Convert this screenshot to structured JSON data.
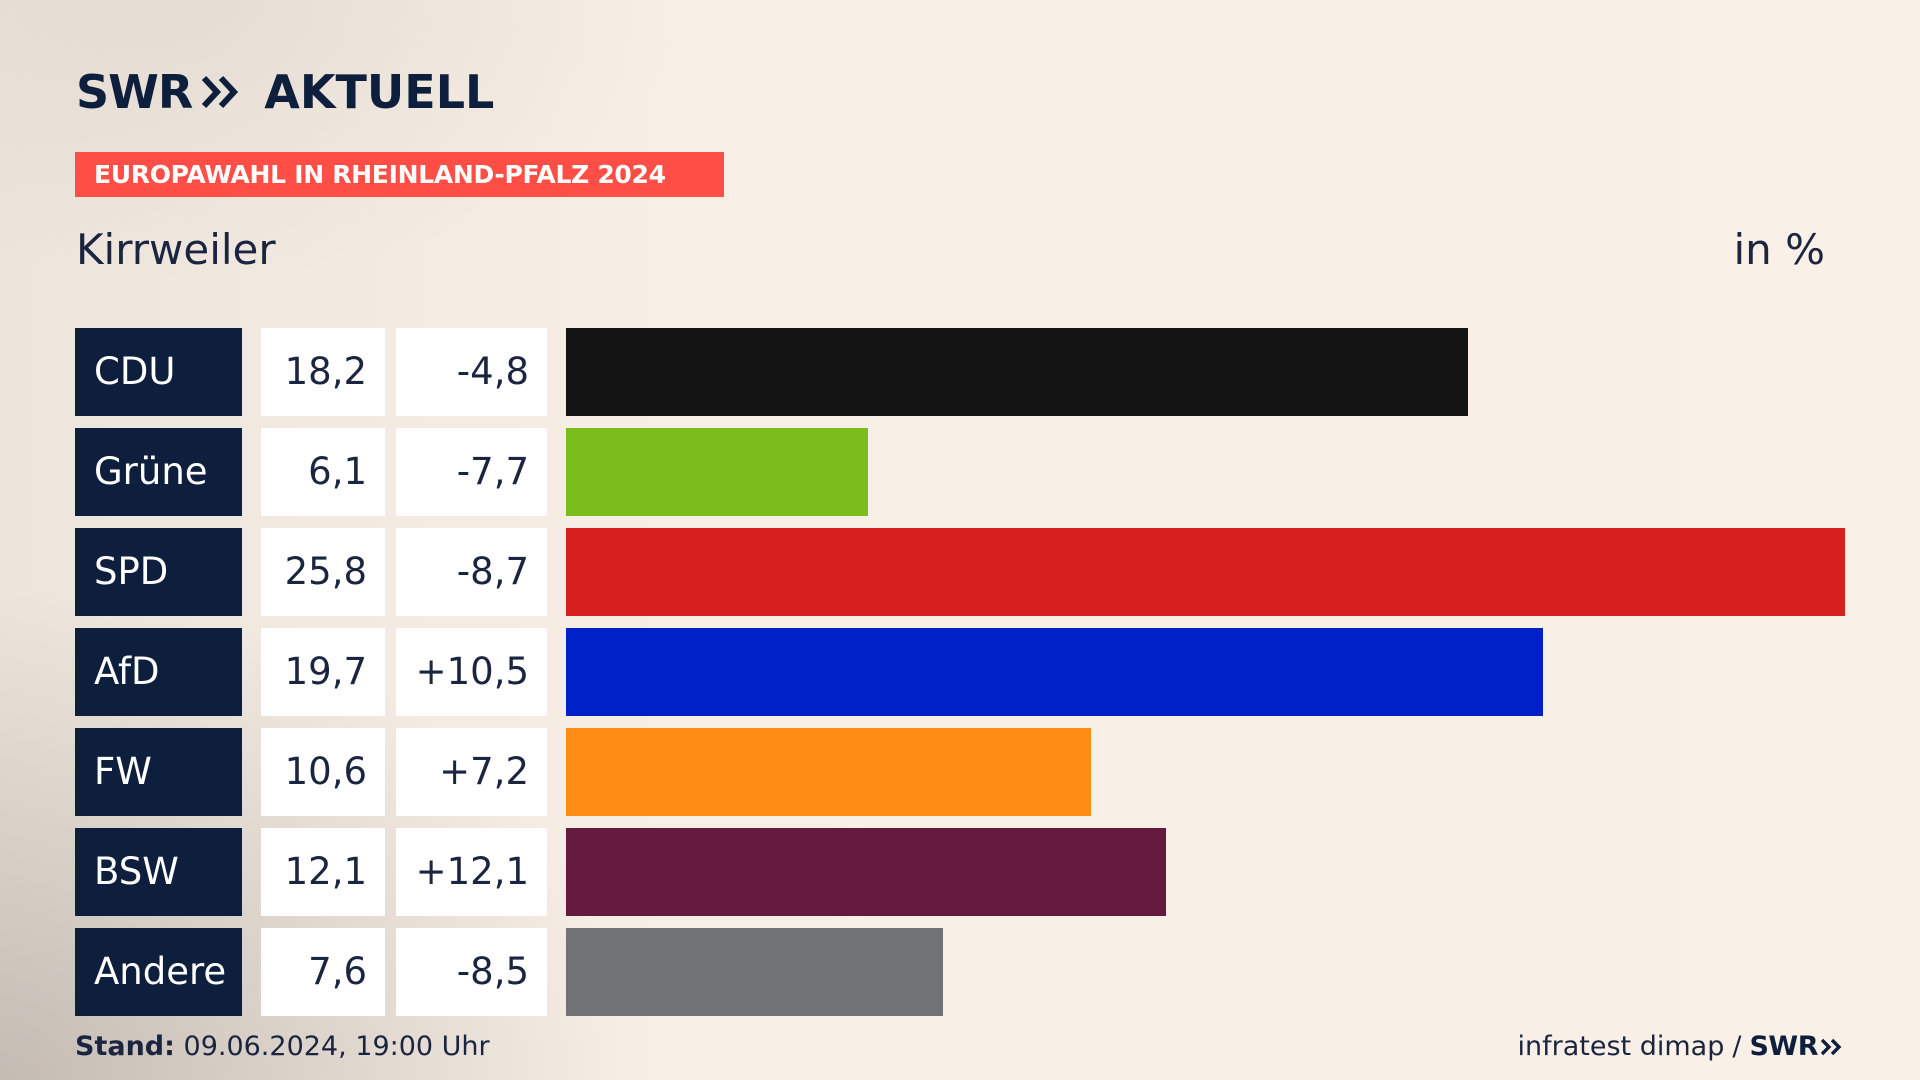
{
  "header": {
    "logo_swr": "SWR",
    "logo_aktuell": "AKTUELL",
    "banner": "EUROPAWAHL IN RHEINLAND-PFALZ 2024",
    "place": "Kirrweiler",
    "unit": "in %"
  },
  "colors": {
    "banner": "#ff4e45",
    "label_bg": "#0e1f3d",
    "text": "#1b2540"
  },
  "chart_data": {
    "type": "bar",
    "orientation": "horizontal",
    "title": "Europawahl in Rheinland-Pfalz 2024 – Kirrweiler",
    "unit": "in %",
    "categories": [
      "CDU",
      "Grüne",
      "SPD",
      "AfD",
      "FW",
      "BSW",
      "Andere"
    ],
    "values": [
      18.2,
      6.1,
      25.8,
      19.7,
      10.6,
      12.1,
      7.6
    ],
    "value_labels": [
      "18,2",
      "6,1",
      "25,8",
      "19,7",
      "10,6",
      "12,1",
      "7,6"
    ],
    "diff_labels": [
      "-4,8",
      "-7,7",
      "-8,7",
      "+10,5",
      "+7,2",
      "+12,1",
      "-8,5"
    ],
    "diffs": [
      -4.8,
      -7.7,
      -8.7,
      10.5,
      7.2,
      12.1,
      -8.5
    ],
    "bar_colors": [
      "#141414",
      "#7abd1c",
      "#d61f1f",
      "#0020c8",
      "#ff8c14",
      "#661a40",
      "#717274"
    ],
    "xlim": [
      0,
      25.8
    ]
  },
  "footer": {
    "stand_label": "Stand:",
    "stand_value": "09.06.2024, 19:00 Uhr",
    "source": "infratest dimap",
    "separator": "/",
    "source_logo": "SWR"
  }
}
